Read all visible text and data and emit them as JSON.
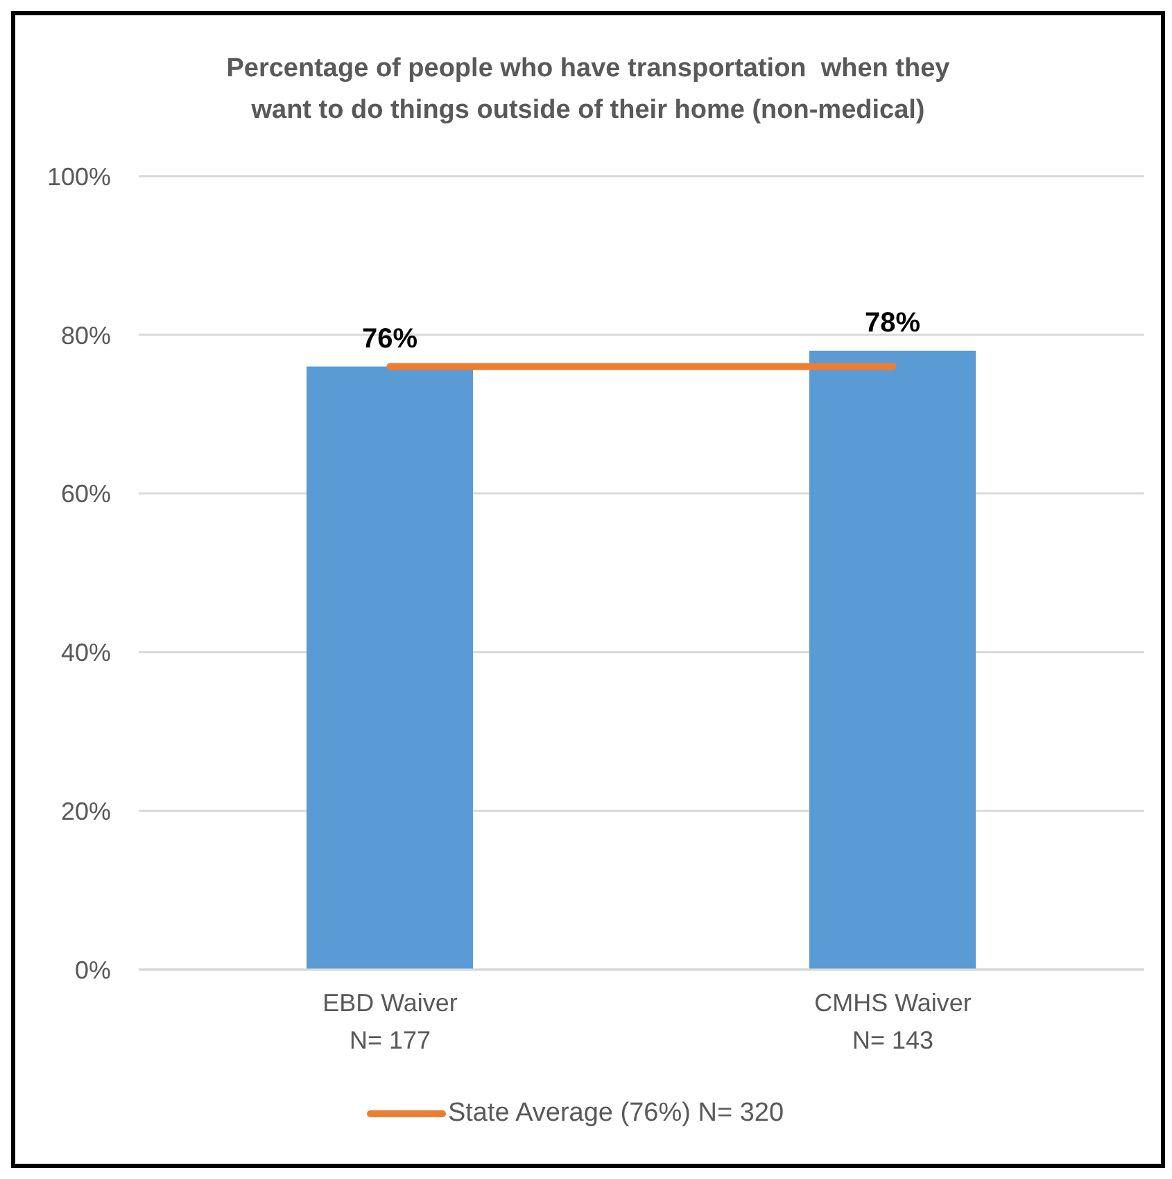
{
  "chart_data": {
    "type": "bar",
    "title": "Percentage of people who have transportation  when they want to do things outside of their home (non-medical)",
    "categories": [
      "EBD Waiver\nN= 177",
      "CMHS Waiver\nN= 143"
    ],
    "series": [
      {
        "color": "#5b9bd5",
        "values": [
          76,
          78
        ],
        "value_labels": [
          "76%",
          "78%"
        ]
      },
      {
        "type": "line",
        "name": "State Average (76%) N= 320",
        "color": "#ed7d31",
        "values": [
          76,
          76
        ]
      }
    ],
    "ylim": [
      0,
      100
    ],
    "yticks": [
      {
        "value": 0,
        "label": "0%"
      },
      {
        "value": 20,
        "label": "20%"
      },
      {
        "value": 40,
        "label": "40%"
      },
      {
        "value": 60,
        "label": "60%"
      },
      {
        "value": 80,
        "label": "80%"
      },
      {
        "value": 100,
        "label": "100%"
      }
    ],
    "grid": "y",
    "legend": "bottom"
  }
}
